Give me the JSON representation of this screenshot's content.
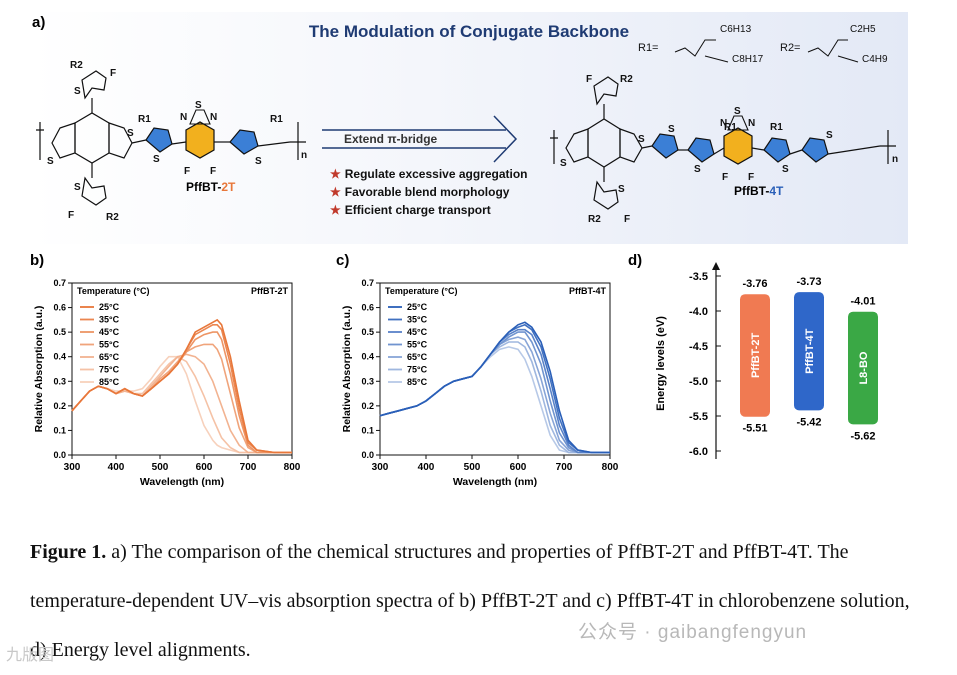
{
  "panel_a": {
    "label": "a)",
    "title": "The Modulation of Conjugate Backbone",
    "r1_label": "R1=",
    "r2_label": "R2=",
    "r1_groups": [
      "C6H13",
      "C8H17"
    ],
    "r2_groups": [
      "C2H5",
      "C4H9"
    ],
    "polymer_2t": {
      "prefix": "PffBT-",
      "suffix": "2T"
    },
    "polymer_4t": {
      "prefix": "PffBT-",
      "suffix": "4T"
    },
    "arrow_label": "Extend π-bridge",
    "features": [
      "Regulate excessive aggregation",
      "Favorable blend morphology",
      "Efficient charge transport"
    ],
    "atoms": {
      "S": "S",
      "N": "N",
      "F": "F",
      "R1": "R1",
      "R2": "R2",
      "n": "n"
    }
  },
  "chart_data": [
    {
      "id": "b",
      "label": "b)",
      "type": "line",
      "title": "PffBT-2T",
      "xlabel": "Wavelength (nm)",
      "ylabel": "Relative Absorption (a.u.)",
      "xlim": [
        300,
        800
      ],
      "ylim": [
        0.0,
        0.7
      ],
      "xticks": [
        300,
        400,
        500,
        600,
        700,
        800
      ],
      "yticks": [
        0.0,
        0.1,
        0.2,
        0.3,
        0.4,
        0.5,
        0.6,
        0.7
      ],
      "legend_title": "Temperature (°C)",
      "color": "#e8773a",
      "x": [
        300,
        320,
        340,
        360,
        380,
        400,
        420,
        440,
        460,
        480,
        500,
        520,
        540,
        560,
        580,
        600,
        620,
        630,
        640,
        660,
        680,
        700,
        720,
        760,
        800
      ],
      "series": [
        {
          "name": "25°C",
          "values": [
            0.18,
            0.22,
            0.26,
            0.28,
            0.27,
            0.25,
            0.27,
            0.25,
            0.24,
            0.27,
            0.3,
            0.33,
            0.37,
            0.43,
            0.5,
            0.52,
            0.54,
            0.55,
            0.53,
            0.4,
            0.22,
            0.06,
            0.02,
            0.01,
            0.01
          ]
        },
        {
          "name": "35°C",
          "values": [
            0.18,
            0.22,
            0.26,
            0.28,
            0.27,
            0.25,
            0.27,
            0.25,
            0.24,
            0.27,
            0.3,
            0.33,
            0.37,
            0.43,
            0.49,
            0.51,
            0.53,
            0.53,
            0.51,
            0.37,
            0.19,
            0.05,
            0.02,
            0.01,
            0.01
          ]
        },
        {
          "name": "45°C",
          "values": [
            0.18,
            0.22,
            0.26,
            0.28,
            0.27,
            0.25,
            0.27,
            0.25,
            0.24,
            0.27,
            0.3,
            0.33,
            0.37,
            0.42,
            0.47,
            0.49,
            0.5,
            0.5,
            0.47,
            0.33,
            0.16,
            0.04,
            0.01,
            0.01,
            0.01
          ]
        },
        {
          "name": "55°C",
          "values": [
            0.18,
            0.22,
            0.26,
            0.28,
            0.27,
            0.25,
            0.27,
            0.25,
            0.24,
            0.27,
            0.31,
            0.34,
            0.38,
            0.42,
            0.44,
            0.45,
            0.45,
            0.43,
            0.39,
            0.25,
            0.11,
            0.03,
            0.01,
            0.01,
            0.01
          ]
        },
        {
          "name": "65°C",
          "values": [
            0.18,
            0.22,
            0.26,
            0.28,
            0.27,
            0.25,
            0.26,
            0.25,
            0.24,
            0.28,
            0.32,
            0.36,
            0.4,
            0.41,
            0.4,
            0.37,
            0.3,
            0.25,
            0.2,
            0.1,
            0.04,
            0.01,
            0.01,
            0.01,
            0.01
          ]
        },
        {
          "name": "75°C",
          "values": [
            0.18,
            0.22,
            0.26,
            0.28,
            0.27,
            0.25,
            0.26,
            0.25,
            0.25,
            0.29,
            0.33,
            0.37,
            0.4,
            0.38,
            0.32,
            0.24,
            0.15,
            0.11,
            0.07,
            0.03,
            0.01,
            0.01,
            0.01,
            0.01,
            0.01
          ]
        },
        {
          "name": "85°C",
          "values": [
            0.18,
            0.22,
            0.26,
            0.28,
            0.27,
            0.26,
            0.26,
            0.26,
            0.27,
            0.31,
            0.36,
            0.4,
            0.4,
            0.33,
            0.22,
            0.12,
            0.06,
            0.04,
            0.03,
            0.02,
            0.01,
            0.01,
            0.01,
            0.01,
            0.01
          ]
        }
      ]
    },
    {
      "id": "c",
      "label": "c)",
      "type": "line",
      "title": "PffBT-4T",
      "xlabel": "Wavelength (nm)",
      "ylabel": "Relative Absorption (a.u.)",
      "xlim": [
        300,
        800
      ],
      "ylim": [
        0.0,
        0.7
      ],
      "xticks": [
        300,
        400,
        500,
        600,
        700,
        800
      ],
      "yticks": [
        0.0,
        0.1,
        0.2,
        0.3,
        0.4,
        0.5,
        0.6,
        0.7
      ],
      "legend_title": "Temperature (°C)",
      "color": "#2a5fb8",
      "x": [
        300,
        320,
        340,
        360,
        380,
        400,
        420,
        440,
        460,
        480,
        500,
        520,
        540,
        560,
        580,
        600,
        615,
        630,
        650,
        670,
        690,
        710,
        730,
        760,
        800
      ],
      "series": [
        {
          "name": "25°C",
          "values": [
            0.16,
            0.17,
            0.18,
            0.19,
            0.2,
            0.22,
            0.25,
            0.28,
            0.3,
            0.31,
            0.32,
            0.36,
            0.41,
            0.46,
            0.5,
            0.53,
            0.54,
            0.52,
            0.46,
            0.34,
            0.18,
            0.06,
            0.02,
            0.01,
            0.01
          ]
        },
        {
          "name": "35°C",
          "values": [
            0.16,
            0.17,
            0.18,
            0.19,
            0.2,
            0.22,
            0.25,
            0.28,
            0.3,
            0.31,
            0.32,
            0.36,
            0.41,
            0.46,
            0.5,
            0.52,
            0.53,
            0.51,
            0.44,
            0.31,
            0.15,
            0.05,
            0.02,
            0.01,
            0.01
          ]
        },
        {
          "name": "45°C",
          "values": [
            0.16,
            0.17,
            0.18,
            0.19,
            0.2,
            0.22,
            0.25,
            0.28,
            0.3,
            0.31,
            0.32,
            0.36,
            0.41,
            0.46,
            0.49,
            0.51,
            0.51,
            0.49,
            0.41,
            0.27,
            0.12,
            0.04,
            0.01,
            0.01,
            0.01
          ]
        },
        {
          "name": "55°C",
          "values": [
            0.16,
            0.17,
            0.18,
            0.19,
            0.2,
            0.22,
            0.25,
            0.28,
            0.3,
            0.31,
            0.32,
            0.36,
            0.41,
            0.45,
            0.48,
            0.5,
            0.5,
            0.46,
            0.37,
            0.22,
            0.09,
            0.03,
            0.01,
            0.01,
            0.01
          ]
        },
        {
          "name": "65°C",
          "values": [
            0.16,
            0.17,
            0.18,
            0.19,
            0.2,
            0.22,
            0.25,
            0.28,
            0.3,
            0.31,
            0.32,
            0.36,
            0.41,
            0.45,
            0.47,
            0.48,
            0.47,
            0.42,
            0.31,
            0.17,
            0.06,
            0.02,
            0.01,
            0.01,
            0.01
          ]
        },
        {
          "name": "75°C",
          "values": [
            0.16,
            0.17,
            0.18,
            0.19,
            0.2,
            0.22,
            0.25,
            0.28,
            0.3,
            0.31,
            0.32,
            0.36,
            0.41,
            0.44,
            0.46,
            0.46,
            0.44,
            0.38,
            0.26,
            0.12,
            0.04,
            0.01,
            0.01,
            0.01,
            0.01
          ]
        },
        {
          "name": "85°C",
          "values": [
            0.16,
            0.17,
            0.18,
            0.19,
            0.2,
            0.22,
            0.25,
            0.28,
            0.3,
            0.31,
            0.32,
            0.36,
            0.4,
            0.43,
            0.44,
            0.43,
            0.39,
            0.32,
            0.2,
            0.08,
            0.02,
            0.01,
            0.01,
            0.01,
            0.01
          ]
        }
      ]
    },
    {
      "id": "d",
      "label": "d)",
      "type": "bar",
      "title": "",
      "ylabel": "Energy levels (eV)",
      "ylim": [
        -6.0,
        -3.5
      ],
      "yticks": [
        -3.5,
        -4.0,
        -4.5,
        -5.0,
        -5.5,
        -6.0
      ],
      "ytick_labels": [
        "-3.5",
        "-4.0",
        "-4.5",
        "-5.0",
        "-5.5",
        "-6.0"
      ],
      "bars": [
        {
          "name": "PffBT-2T",
          "lumo": -3.76,
          "homo": -5.51,
          "lumo_label": "-3.76",
          "homo_label": "-5.51",
          "color": "#f07a52"
        },
        {
          "name": "PffBT-4T",
          "lumo": -3.73,
          "homo": -5.42,
          "lumo_label": "-3.73",
          "homo_label": "-5.42",
          "color": "#2f67c9"
        },
        {
          "name": "L8-BO",
          "lumo": -4.01,
          "homo": -5.62,
          "lumo_label": "-4.01",
          "homo_label": "-5.62",
          "color": "#3aa845"
        }
      ]
    }
  ],
  "caption": {
    "bold": "Figure 1.",
    "text": " a) The comparison of the chemical structures and properties of PffBT-2T and PffBT-4T. The temperature-dependent UV–vis absorption spectra of b) PffBT-2T and c) PffBT-4T in chlorobenzene solution, d) Energy level alignments."
  },
  "watermark": {
    "text": "公众号 · gaibangfengyun",
    "corner": "九版图"
  },
  "colors": {
    "accent_orange": "#e8773a",
    "accent_blue": "#2a5fb8",
    "title_blue": "#1f3b73",
    "thiophene_blue": "#3b7fd6",
    "benzo_yellow": "#f2b01e"
  }
}
